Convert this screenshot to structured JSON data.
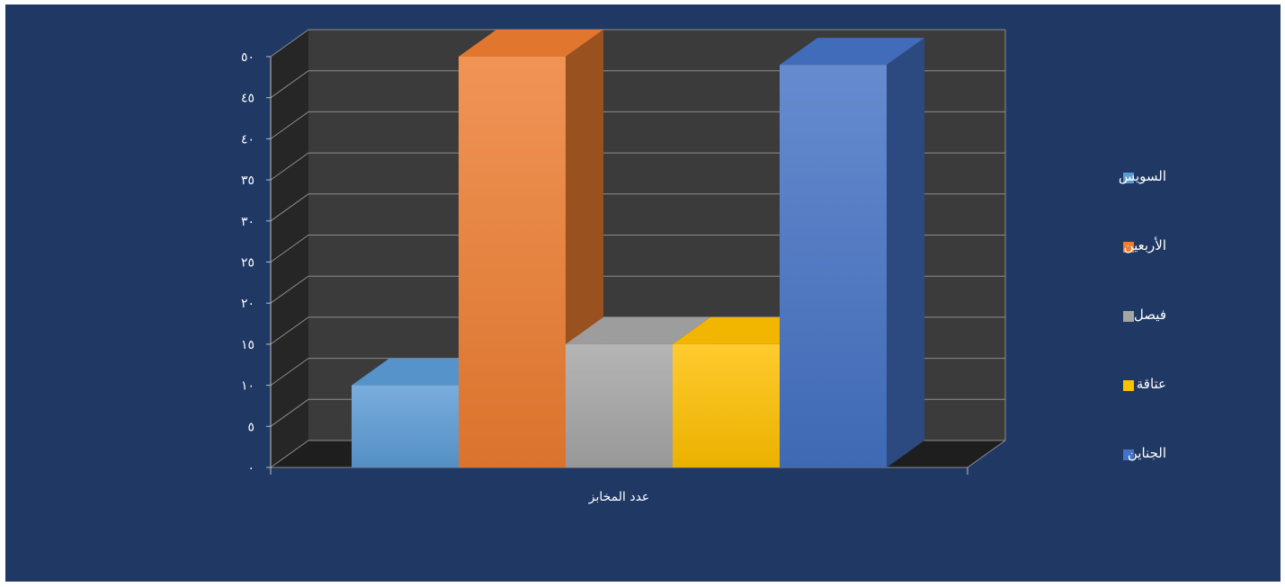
{
  "chart_data": {
    "type": "bar",
    "categories": [
      "عدد المخابز"
    ],
    "xlabel": "عدد المخابز",
    "ylim": [
      0,
      50
    ],
    "y_ticks": [
      "٠",
      "٥",
      "١٠",
      "١٥",
      "٢٠",
      "٢٥",
      "٣٠",
      "٣٥",
      "٤٠",
      "٤٥",
      "٥٠"
    ],
    "grid": true,
    "legend_position": "right",
    "series": [
      {
        "name": "السويس",
        "values": [
          10
        ],
        "color": "#5b9bd5"
      },
      {
        "name": "الأربعين",
        "values": [
          50
        ],
        "color": "#ed7d31"
      },
      {
        "name": "فيصل",
        "values": [
          15
        ],
        "color": "#a5a5a5"
      },
      {
        "name": "عتاقة",
        "values": [
          15
        ],
        "color": "#ffc000"
      },
      {
        "name": "الجناين",
        "values": [
          49
        ],
        "color": "#4472c4"
      }
    ]
  }
}
